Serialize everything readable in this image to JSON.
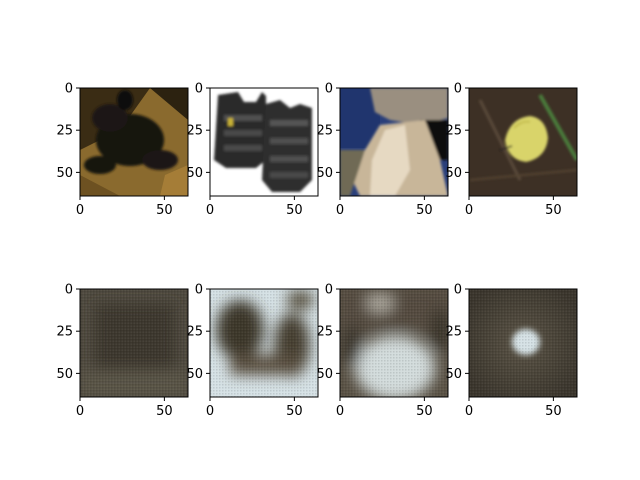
{
  "figure": {
    "background": "#ffffff",
    "layout": "2 rows x 4 columns of image panels; top row original photos, bottom row blurry reconstructions"
  },
  "chart_data": [
    {
      "type": "image",
      "row": 1,
      "col": 1,
      "content": "dark photo of black dog lying on tan carpet",
      "xlim": [
        0,
        64
      ],
      "ylim": [
        64,
        0
      ],
      "xticks": [
        "0",
        "50"
      ],
      "yticks": [
        "0",
        "25",
        "50"
      ],
      "grid": false
    },
    {
      "type": "image",
      "row": 1,
      "col": 2,
      "content": "two black padded body-armor vests on white background",
      "xlim": [
        0,
        64
      ],
      "ylim": [
        64,
        0
      ],
      "xticks": [
        "0",
        "50"
      ],
      "yticks": [
        "0",
        "25",
        "50"
      ],
      "grid": false
    },
    {
      "type": "image",
      "row": 1,
      "col": 3,
      "content": "rocky cliff ledge with blue sky and cave shadow",
      "xlim": [
        0,
        64
      ],
      "ylim": [
        64,
        0
      ],
      "xticks": [
        "0",
        "50"
      ],
      "yticks": [
        "0",
        "25",
        "50"
      ],
      "grid": false
    },
    {
      "type": "image",
      "row": 1,
      "col": 4,
      "content": "pale yellow butterfly on dark soil with grass blade",
      "xlim": [
        0,
        64
      ],
      "ylim": [
        64,
        0
      ],
      "xticks": [
        "0",
        "50"
      ],
      "yticks": [
        "0",
        "25",
        "50"
      ],
      "grid": false
    },
    {
      "type": "image",
      "row": 2,
      "col": 1,
      "content": "blurry uniform dark brown reconstruction",
      "xlim": [
        0,
        64
      ],
      "ylim": [
        64,
        0
      ],
      "xticks": [
        "0",
        "50"
      ],
      "yticks": [
        "0",
        "25",
        "50"
      ],
      "grid": false
    },
    {
      "type": "image",
      "row": 2,
      "col": 2,
      "content": "blurry reconstruction with dark vest shapes on pale blue-white background",
      "xlim": [
        0,
        64
      ],
      "ylim": [
        64,
        0
      ],
      "xticks": [
        "0",
        "50"
      ],
      "yticks": [
        "0",
        "25",
        "50"
      ],
      "grid": false
    },
    {
      "type": "image",
      "row": 2,
      "col": 3,
      "content": "blurry reconstruction with brown upper region and pale center blob",
      "xlim": [
        0,
        64
      ],
      "ylim": [
        64,
        0
      ],
      "xticks": [
        "0",
        "50"
      ],
      "yticks": [
        "0",
        "25",
        "50"
      ],
      "grid": false
    },
    {
      "type": "image",
      "row": 2,
      "col": 4,
      "content": "blurry dark brown reconstruction with pale blue-white center spot",
      "xlim": [
        0,
        64
      ],
      "ylim": [
        64,
        0
      ],
      "xticks": [
        "0",
        "50"
      ],
      "yticks": [
        "0",
        "25",
        "50"
      ],
      "grid": false
    }
  ],
  "colors": {
    "dog_bg": "#8a6a2e",
    "dog_dark": "#1a1610",
    "vest_dark": "#2a2a2a",
    "sky": "#2a3f7a",
    "rock": "#9a8f80",
    "soil": "#3d3025",
    "butterfly": "#d9d46a",
    "recon_brown": "#4f4a3f",
    "recon_pale": "#d6e2e6"
  }
}
